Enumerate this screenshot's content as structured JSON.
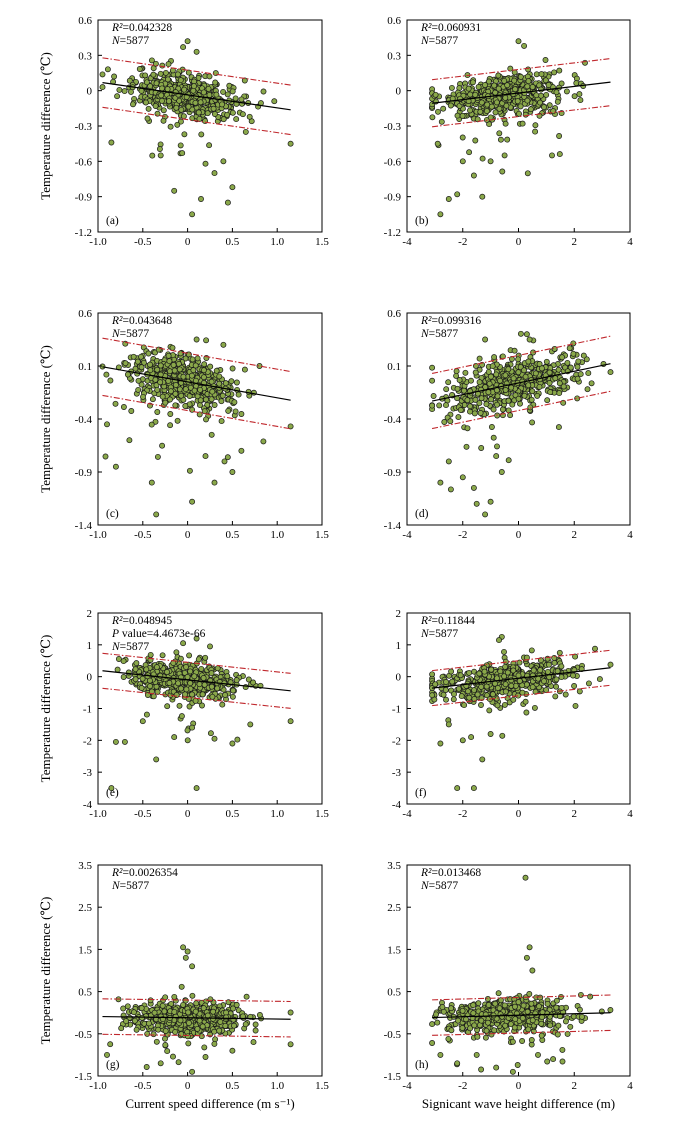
{
  "page": {
    "background": "#ffffff"
  },
  "colors": {
    "point_fill": "#8aa84a",
    "point_edge": "#1a1a1a",
    "fit_line": "#000000",
    "prediction_band": "#c0282d"
  },
  "chart_data": [
    {
      "id": "a",
      "panel_label": "(a)",
      "type": "scatter",
      "x_var": "current_speed",
      "xlim": [
        -1.0,
        1.5
      ],
      "xticks": [
        "-1.0",
        "-0.5",
        "0",
        "0.5",
        "1.0",
        "1.5"
      ],
      "xtick_values": [
        -1.0,
        -0.5,
        0,
        0.5,
        1.0,
        1.5
      ],
      "ylim": [
        -1.2,
        0.6
      ],
      "yticks": [
        "0.6",
        "0.3",
        "0",
        "-0.3",
        "-0.6",
        "-0.9",
        "-1.2"
      ],
      "ytick_values": [
        0.6,
        0.3,
        0,
        -0.3,
        -0.6,
        -0.9,
        -1.2
      ],
      "ylabel": "Temperature difference (℃)",
      "xlabel": "",
      "stats": {
        "r2_label": "R²",
        "r2_value": "=0.042328",
        "p_label": "",
        "p_value": "",
        "n_label": "N",
        "n_value": "=5877"
      },
      "n_points": 5877,
      "fit_line": {
        "slope": -0.11,
        "intercept": -0.036
      },
      "prediction_band_offset": 0.21,
      "x_range": [
        -0.95,
        1.15
      ],
      "cluster": {
        "x_center": -0.02,
        "x_spread": 0.3,
        "y_spread": 0.09
      },
      "outliers": [
        [
          0.0,
          0.42
        ],
        [
          -0.05,
          0.37
        ],
        [
          0.1,
          0.33
        ],
        [
          -0.85,
          -0.44
        ],
        [
          0.05,
          -1.05
        ],
        [
          0.15,
          -0.92
        ],
        [
          -0.15,
          -0.85
        ],
        [
          0.45,
          -0.95
        ],
        [
          0.5,
          -0.82
        ],
        [
          0.3,
          -0.7
        ],
        [
          -0.3,
          -0.55
        ],
        [
          0.65,
          -0.35
        ],
        [
          1.15,
          -0.45
        ],
        [
          0.2,
          -0.62
        ],
        [
          0.4,
          -0.6
        ]
      ]
    },
    {
      "id": "b",
      "panel_label": "(b)",
      "type": "scatter",
      "x_var": "significant_wave_height",
      "xlim": [
        -4,
        4
      ],
      "xticks": [
        "-4",
        "-2",
        "0",
        "2",
        "4"
      ],
      "xtick_values": [
        -4,
        -2,
        0,
        2,
        4
      ],
      "ylim": [
        -1.2,
        0.6
      ],
      "yticks": [
        "0.6",
        "0.3",
        "0",
        "-0.3",
        "-0.6",
        "-0.9",
        "-1.2"
      ],
      "ytick_values": [
        0.6,
        0.3,
        0,
        -0.3,
        -0.6,
        -0.9,
        -1.2
      ],
      "ylabel": "",
      "xlabel": "",
      "stats": {
        "r2_label": "R²",
        "r2_value": "=0.060931",
        "p_label": "",
        "p_value": "",
        "n_label": "N",
        "n_value": "=5877"
      },
      "n_points": 5877,
      "fit_line": {
        "slope": 0.028,
        "intercept": -0.02
      },
      "prediction_band_offset": 0.2,
      "x_range": [
        -3.1,
        3.3
      ],
      "cluster": {
        "x_center": -0.6,
        "x_spread": 1.1,
        "y_spread": 0.09
      },
      "outliers": [
        [
          0.0,
          0.42
        ],
        [
          0.2,
          0.38
        ],
        [
          -2.8,
          -1.05
        ],
        [
          -2.5,
          -0.92
        ],
        [
          -2.2,
          -0.88
        ],
        [
          -1.3,
          -0.9
        ],
        [
          -1.6,
          -0.72
        ],
        [
          -1.0,
          -0.6
        ],
        [
          -0.5,
          -0.55
        ],
        [
          1.2,
          -0.55
        ],
        [
          -2.0,
          -0.6
        ],
        [
          -2.9,
          -0.45
        ]
      ]
    },
    {
      "id": "c",
      "panel_label": "(c)",
      "type": "scatter",
      "x_var": "current_speed",
      "xlim": [
        -1.0,
        1.5
      ],
      "xticks": [
        "-1.0",
        "-0.5",
        "0",
        "0.5",
        "1.0",
        "1.5"
      ],
      "xtick_values": [
        -1.0,
        -0.5,
        0,
        0.5,
        1.0,
        1.5
      ],
      "ylim": [
        -1.4,
        0.6
      ],
      "yticks": [
        "0.6",
        "0.1",
        "-0.4",
        "-0.9",
        "-1.4"
      ],
      "ytick_values": [
        0.6,
        0.1,
        -0.4,
        -0.9,
        -1.4
      ],
      "ylabel": "Temperature difference (℃)",
      "xlabel": "",
      "stats": {
        "r2_label": "R²",
        "r2_value": "=0.043648",
        "p_label": "",
        "p_value": "",
        "n_label": "N",
        "n_value": "=5877"
      },
      "n_points": 5877,
      "fit_line": {
        "slope": -0.15,
        "intercept": -0.05
      },
      "prediction_band_offset": 0.27,
      "x_range": [
        -0.95,
        1.15
      ],
      "cluster": {
        "x_center": -0.05,
        "x_spread": 0.3,
        "y_spread": 0.13
      },
      "outliers": [
        [
          -0.35,
          -1.3
        ],
        [
          0.05,
          -1.18
        ],
        [
          -0.8,
          -0.85
        ],
        [
          -0.65,
          -0.6
        ],
        [
          -0.4,
          -1.0
        ],
        [
          0.3,
          -1.0
        ],
        [
          0.5,
          -0.9
        ],
        [
          0.2,
          -0.75
        ],
        [
          1.15,
          -0.47
        ],
        [
          -0.9,
          -0.45
        ],
        [
          0.6,
          -0.7
        ],
        [
          0.1,
          0.35
        ],
        [
          0.4,
          0.3
        ]
      ]
    },
    {
      "id": "d",
      "panel_label": "(d)",
      "type": "scatter",
      "x_var": "significant_wave_height",
      "xlim": [
        -4,
        4
      ],
      "xticks": [
        "-4",
        "-2",
        "0",
        "2",
        "4"
      ],
      "xtick_values": [
        -4,
        -2,
        0,
        2,
        4
      ],
      "ylim": [
        -1.4,
        0.6
      ],
      "yticks": [
        "0.6",
        "0.1",
        "-0.4",
        "-0.9",
        "-1.4"
      ],
      "ytick_values": [
        0.6,
        0.1,
        -0.4,
        -0.9,
        -1.4
      ],
      "ylabel": "",
      "xlabel": "",
      "stats": {
        "r2_label": "R²",
        "r2_value": "=0.099316",
        "p_label": "",
        "p_value": "",
        "n_label": "N",
        "n_value": "=5877"
      },
      "n_points": 5877,
      "fit_line": {
        "slope": 0.055,
        "intercept": -0.06
      },
      "prediction_band_offset": 0.26,
      "x_range": [
        -3.1,
        3.3
      ],
      "cluster": {
        "x_center": -0.3,
        "x_spread": 1.2,
        "y_spread": 0.12
      },
      "outliers": [
        [
          -1.2,
          -1.3
        ],
        [
          -1.5,
          -1.2
        ],
        [
          -1.0,
          -1.18
        ],
        [
          -2.8,
          -1.0
        ],
        [
          -2.0,
          -0.95
        ],
        [
          -1.6,
          -1.05
        ],
        [
          -0.6,
          -0.9
        ],
        [
          -2.5,
          -0.8
        ],
        [
          -1.2,
          0.35
        ],
        [
          0.3,
          0.4
        ],
        [
          0.4,
          0.35
        ],
        [
          -0.8,
          -0.75
        ]
      ]
    },
    {
      "id": "e",
      "panel_label": "(e)",
      "type": "scatter",
      "x_var": "current_speed",
      "xlim": [
        -1.0,
        1.5
      ],
      "xticks": [
        "-1.0",
        "-0.5",
        "0",
        "0.5",
        "1.0",
        "1.5"
      ],
      "xtick_values": [
        -1.0,
        -0.5,
        0,
        0.5,
        1.0,
        1.5
      ],
      "ylim": [
        -4,
        2
      ],
      "yticks": [
        "2",
        "1",
        "0",
        "-1",
        "-2",
        "-3",
        "-4"
      ],
      "ytick_values": [
        2,
        1,
        0,
        -1,
        -2,
        -3,
        -4
      ],
      "ylabel": "Temperature difference (℃)",
      "xlabel": "",
      "stats": {
        "r2_label": "R²",
        "r2_value": "=0.048945",
        "p_label": "P",
        "p_value": " value=4.4673e-66",
        "n_label": "N",
        "n_value": "=5877"
      },
      "n_points": 5877,
      "fit_line": {
        "slope": -0.3,
        "intercept": -0.1
      },
      "prediction_band_offset": 0.55,
      "x_range": [
        -0.95,
        1.15
      ],
      "cluster": {
        "x_center": -0.02,
        "x_spread": 0.3,
        "y_spread": 0.28
      },
      "outliers": [
        [
          -0.85,
          -3.5
        ],
        [
          0.1,
          -3.5
        ],
        [
          -0.35,
          -2.6
        ],
        [
          -0.8,
          -2.05
        ],
        [
          -0.7,
          -2.05
        ],
        [
          0.5,
          -2.1
        ],
        [
          0.3,
          -1.95
        ],
        [
          -0.15,
          -1.9
        ],
        [
          0.05,
          -1.6
        ],
        [
          0.7,
          -1.5
        ],
        [
          1.15,
          -1.4
        ],
        [
          -0.5,
          -1.4
        ],
        [
          0.1,
          1.2
        ],
        [
          -0.05,
          1.05
        ],
        [
          0.25,
          0.95
        ]
      ]
    },
    {
      "id": "f",
      "panel_label": "(f)",
      "type": "scatter",
      "x_var": "significant_wave_height",
      "xlim": [
        -4,
        4
      ],
      "xticks": [
        "-4",
        "-2",
        "0",
        "2",
        "4"
      ],
      "xtick_values": [
        -4,
        -2,
        0,
        2,
        4
      ],
      "ylim": [
        -4,
        2
      ],
      "yticks": [
        "2",
        "1",
        "0",
        "-1",
        "-2",
        "-3",
        "-4"
      ],
      "ytick_values": [
        2,
        1,
        0,
        -1,
        -2,
        -3,
        -4
      ],
      "ylabel": "",
      "xlabel": "",
      "stats": {
        "r2_label": "R²",
        "r2_value": "=0.11844",
        "p_label": "",
        "p_value": "",
        "n_label": "N",
        "n_value": "=5877"
      },
      "n_points": 5877,
      "fit_line": {
        "slope": 0.1,
        "intercept": -0.05
      },
      "prediction_band_offset": 0.55,
      "x_range": [
        -3.1,
        3.3
      ],
      "cluster": {
        "x_center": -0.4,
        "x_spread": 1.2,
        "y_spread": 0.26
      },
      "outliers": [
        [
          -2.2,
          -3.5
        ],
        [
          -1.6,
          -3.5
        ],
        [
          -1.3,
          -2.6
        ],
        [
          -2.8,
          -2.1
        ],
        [
          -2.0,
          -2.0
        ],
        [
          -1.7,
          -1.9
        ],
        [
          -1.0,
          -1.8
        ],
        [
          -0.6,
          1.25
        ],
        [
          -0.7,
          1.15
        ],
        [
          0.3,
          0.6
        ],
        [
          -2.5,
          -1.5
        ]
      ]
    },
    {
      "id": "g",
      "panel_label": "(g)",
      "type": "scatter",
      "x_var": "current_speed",
      "xlim": [
        -1.0,
        1.5
      ],
      "xticks": [
        "-1.0",
        "-0.5",
        "0",
        "0.5",
        "1.0",
        "1.5"
      ],
      "xtick_values": [
        -1.0,
        -0.5,
        0,
        0.5,
        1.0,
        1.5
      ],
      "ylim": [
        -1.5,
        3.5
      ],
      "yticks": [
        "3.5",
        "2.5",
        "1.5",
        "0.5",
        "-0.5",
        "-1.5"
      ],
      "ytick_values": [
        3.5,
        2.5,
        1.5,
        0.5,
        -0.5,
        -1.5
      ],
      "ylabel": "Temperature difference (℃)",
      "xlabel": "Current speed difference (m s⁻¹)",
      "stats": {
        "r2_label": "R²",
        "r2_value": "=0.0026354",
        "p_label": "",
        "p_value": "",
        "n_label": "N",
        "n_value": "=5877"
      },
      "n_points": 5877,
      "fit_line": {
        "slope": -0.03,
        "intercept": -0.12
      },
      "prediction_band_offset": 0.42,
      "x_range": [
        -0.95,
        1.15
      ],
      "cluster": {
        "x_center": -0.02,
        "x_spread": 0.3,
        "y_spread": 0.2
      },
      "outliers": [
        [
          -0.05,
          1.55
        ],
        [
          0.0,
          1.45
        ],
        [
          -0.02,
          1.3
        ],
        [
          0.05,
          1.1
        ],
        [
          -0.9,
          -1.0
        ],
        [
          -0.3,
          -1.2
        ],
        [
          0.05,
          -1.4
        ],
        [
          1.15,
          -0.75
        ],
        [
          0.5,
          -0.9
        ],
        [
          0.2,
          -1.05
        ]
      ]
    },
    {
      "id": "h",
      "panel_label": "(h)",
      "type": "scatter",
      "x_var": "significant_wave_height",
      "xlim": [
        -4,
        4
      ],
      "xticks": [
        "-4",
        "-2",
        "0",
        "2",
        "4"
      ],
      "xtick_values": [
        -4,
        -2,
        0,
        2,
        4
      ],
      "ylim": [
        -1.5,
        3.5
      ],
      "yticks": [
        "3.5",
        "2.5",
        "1.5",
        "0.5",
        "-0.5",
        "-1.5"
      ],
      "ytick_values": [
        3.5,
        2.5,
        1.5,
        0.5,
        -0.5,
        -1.5
      ],
      "ylabel": "",
      "xlabel": "Signicant wave height difference (m)",
      "stats": {
        "r2_label": "R²",
        "r2_value": "=0.013468",
        "p_label": "",
        "p_value": "",
        "n_label": "N",
        "n_value": "=5877"
      },
      "n_points": 5877,
      "fit_line": {
        "slope": 0.018,
        "intercept": -0.06
      },
      "prediction_band_offset": 0.42,
      "x_range": [
        -3.1,
        3.3
      ],
      "cluster": {
        "x_center": -0.3,
        "x_spread": 1.2,
        "y_spread": 0.2
      },
      "outliers": [
        [
          0.25,
          3.2
        ],
        [
          0.4,
          1.55
        ],
        [
          0.3,
          1.3
        ],
        [
          0.5,
          1.0
        ],
        [
          -2.8,
          -1.0
        ],
        [
          -2.2,
          -1.2
        ],
        [
          -0.8,
          -1.3
        ],
        [
          -0.2,
          -1.4
        ],
        [
          0.7,
          -1.0
        ],
        [
          -1.5,
          -1.0
        ]
      ]
    }
  ]
}
